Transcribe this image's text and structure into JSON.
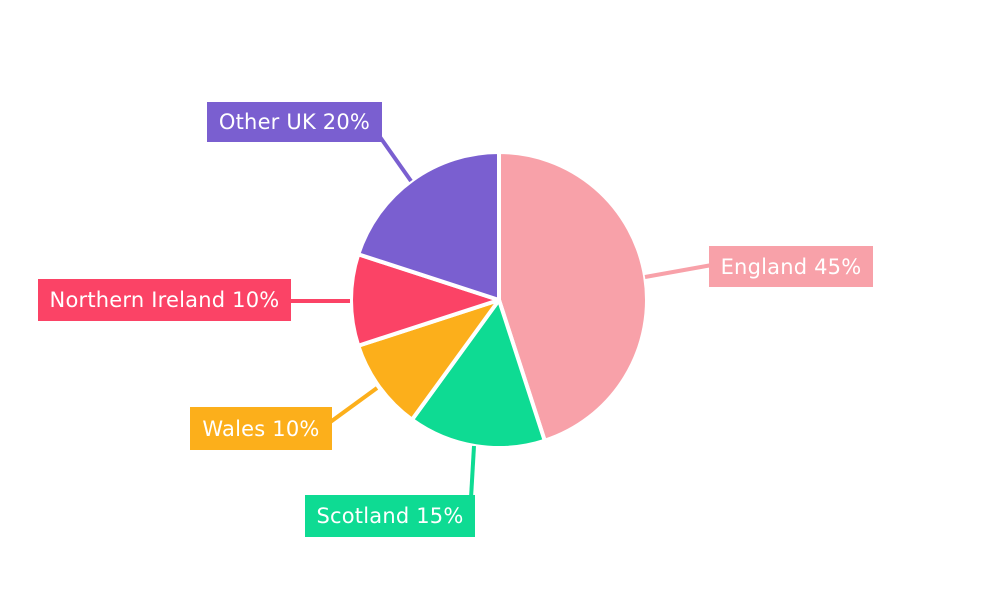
{
  "chart_data": {
    "type": "pie",
    "title": "",
    "categories": [
      "England",
      "Scotland",
      "Wales",
      "Northern Ireland",
      "Other UK"
    ],
    "values": [
      45,
      15,
      10,
      10,
      20
    ],
    "unit": "%",
    "labels": [
      "England 45%",
      "Scotland 15%",
      "Wales 10%",
      "Northern Ireland 10%",
      "Other UK 20%"
    ],
    "colors": [
      "#f8a1a9",
      "#0edb93",
      "#fcaf1b",
      "#fb4366",
      "#7a5fd0"
    ],
    "start_angle": "top",
    "direction": "clockwise",
    "slice_border_color": "#ffffff",
    "label_text_color": "#ffffff",
    "background": "#ffffff",
    "legend": "none"
  }
}
